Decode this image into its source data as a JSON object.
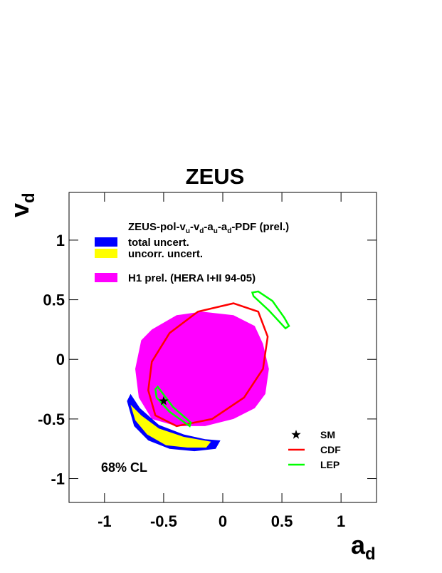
{
  "chart_data": {
    "type": "contour",
    "title": "ZEUS",
    "xlabel": "a",
    "xlabel_sub": "d",
    "ylabel": "v",
    "ylabel_sub": "d",
    "xlim": [
      -1.3,
      1.3
    ],
    "ylim": [
      -1.2,
      1.4
    ],
    "xticks": [
      -1,
      -0.5,
      0,
      0.5,
      1
    ],
    "yticks": [
      -1,
      -0.5,
      0,
      0.5,
      1
    ],
    "legend_title": [
      "ZEUS-pol-v",
      "u",
      "-v",
      "d",
      "-a",
      "u",
      "-a",
      "d",
      "-PDF (prel.)"
    ],
    "annotation": "68% CL",
    "series": [
      {
        "name": "H1 prel. (HERA I+II 94-05)",
        "color": "#ff00ff",
        "fill": true,
        "x": [
          -0.74,
          -0.69,
          -0.6,
          -0.39,
          -0.18,
          0.09,
          0.27,
          0.34,
          0.39,
          0.36,
          0.27,
          0.09,
          -0.15,
          -0.39,
          -0.6,
          -0.71
        ],
        "y": [
          -0.08,
          0.16,
          0.25,
          0.37,
          0.4,
          0.37,
          0.28,
          0.13,
          -0.08,
          -0.29,
          -0.41,
          -0.5,
          -0.56,
          -0.56,
          -0.5,
          -0.32
        ]
      },
      {
        "name": "total uncert.",
        "color": "#0000ff",
        "fill": true,
        "x": [
          -0.81,
          -0.78,
          -0.7,
          -0.54,
          -0.33,
          -0.15,
          -0.02,
          -0.06,
          -0.24,
          -0.45,
          -0.63,
          -0.75
        ],
        "y": [
          -0.35,
          -0.29,
          -0.41,
          -0.55,
          -0.63,
          -0.67,
          -0.68,
          -0.75,
          -0.77,
          -0.75,
          -0.68,
          -0.56
        ]
      },
      {
        "name": "uncorr. uncert.",
        "color": "#ffff00",
        "fill": true,
        "x": [
          -0.78,
          -0.69,
          -0.54,
          -0.33,
          -0.1,
          -0.14,
          -0.3,
          -0.48,
          -0.64,
          -0.74
        ],
        "y": [
          -0.38,
          -0.47,
          -0.58,
          -0.65,
          -0.69,
          -0.74,
          -0.74,
          -0.72,
          -0.63,
          -0.51
        ]
      },
      {
        "name": "CDF",
        "color": "#ff0000",
        "fill": false,
        "x": [
          -0.63,
          -0.6,
          -0.45,
          -0.21,
          0.09,
          0.3,
          0.38,
          0.34,
          0.18,
          -0.09,
          -0.39,
          -0.57
        ],
        "y": [
          -0.26,
          -0.02,
          0.22,
          0.4,
          0.47,
          0.4,
          0.19,
          -0.08,
          -0.32,
          -0.5,
          -0.56,
          -0.47
        ]
      },
      {
        "name": "LEP",
        "color": "#00ff00",
        "fill": false,
        "x": [
          0.25,
          0.3,
          0.42,
          0.52,
          0.56,
          0.53,
          0.39,
          0.26,
          null,
          -0.57,
          -0.55,
          -0.42,
          -0.27,
          -0.28,
          -0.45,
          -0.56
        ],
        "y": [
          0.56,
          0.57,
          0.49,
          0.35,
          0.28,
          0.26,
          0.41,
          0.53,
          null,
          -0.25,
          -0.23,
          -0.4,
          -0.53,
          -0.56,
          -0.44,
          -0.32
        ]
      }
    ],
    "points": [
      {
        "name": "SM",
        "x": -0.5,
        "y": -0.35,
        "marker": "star",
        "color": "#000000"
      }
    ]
  }
}
